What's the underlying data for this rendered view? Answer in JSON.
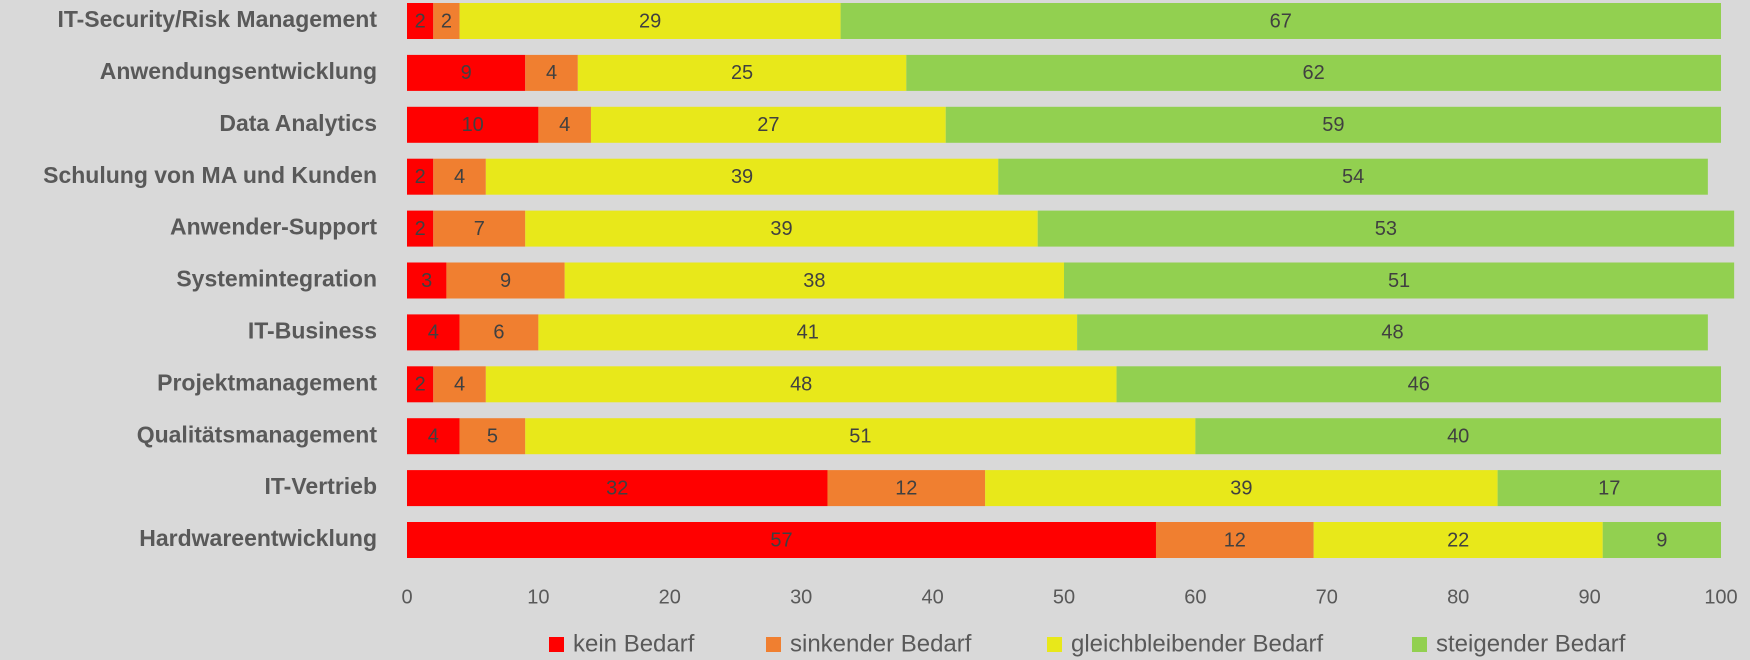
{
  "chart_data": {
    "type": "stacked-bar-horizontal",
    "categories": [
      "IT-Security/Risk Management",
      "Anwendungsentwicklung",
      "Data Analytics",
      "Schulung von MA und Kunden",
      "Anwender-Support",
      "Systemintegration",
      "IT-Business",
      "Projektmanagement",
      "Qualitätsmanagement",
      "IT-Vertrieb",
      "Hardwareentwicklung"
    ],
    "series": [
      {
        "name": "kein Bedarf",
        "color": "#ff0000",
        "values": [
          2,
          9,
          10,
          2,
          2,
          3,
          4,
          2,
          4,
          32,
          57
        ]
      },
      {
        "name": "sinkender Bedarf",
        "color": "#f07f30",
        "values": [
          2,
          4,
          4,
          4,
          7,
          9,
          6,
          4,
          5,
          12,
          12
        ]
      },
      {
        "name": "gleichbleibender Bedarf",
        "color": "#e8e81a",
        "values": [
          29,
          25,
          27,
          39,
          39,
          38,
          41,
          48,
          51,
          39,
          22
        ]
      },
      {
        "name": "steigender Bedarf",
        "color": "#92d050",
        "values": [
          67,
          62,
          59,
          54,
          53,
          51,
          48,
          46,
          40,
          17,
          9
        ]
      }
    ],
    "xlim": [
      0,
      100
    ],
    "xticks": [
      0,
      10,
      20,
      30,
      40,
      50,
      60,
      70,
      80,
      90,
      100
    ],
    "legend": "bottom"
  }
}
